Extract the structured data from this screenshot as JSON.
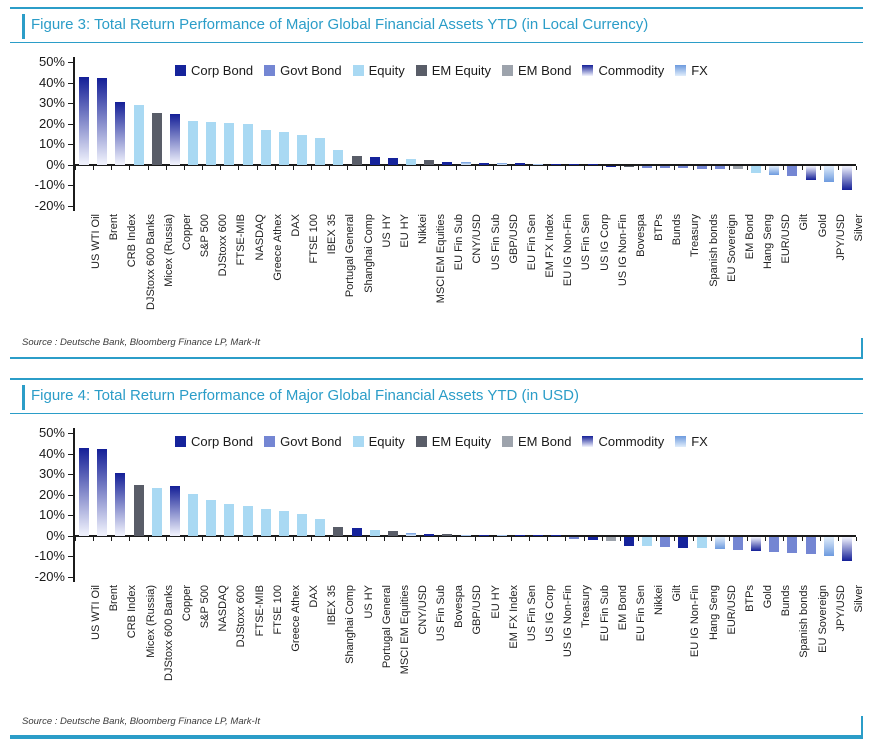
{
  "page": {
    "publisher_note": "Source : Deutsche Bank, Bloomberg Finance LP, Mark-It"
  },
  "colors": {
    "accent_teal": "#2b9dc8",
    "axis": "#1b1b1b"
  },
  "categories": {
    "corp_bond": {
      "label": "Corp Bond",
      "color": "#15239b"
    },
    "govt_bond": {
      "label": "Govt Bond",
      "color": "#7486d3"
    },
    "equity": {
      "label": "Equity",
      "color": "#a9d9f3"
    },
    "em_equity": {
      "label": "EM Equity",
      "color": "#595d68"
    },
    "em_bond": {
      "label": "EM Bond",
      "color": "#9da3ac"
    },
    "commodity": {
      "label": "Commodity",
      "gradient": [
        "#141f97",
        "#edeffb"
      ]
    },
    "fx": {
      "label": "FX",
      "gradient": [
        "#6d9ade",
        "#ddebfa"
      ]
    }
  },
  "legend": [
    {
      "label": "Corp Bond",
      "cat": "corp_bond"
    },
    {
      "label": "Govt Bond",
      "cat": "govt_bond"
    },
    {
      "label": "Equity",
      "cat": "equity"
    },
    {
      "label": "EM Equity",
      "cat": "em_equity"
    },
    {
      "label": "EM Bond",
      "cat": "em_bond"
    },
    {
      "label": "Commodity",
      "cat": "commodity"
    },
    {
      "label": "FX",
      "cat": "fx"
    }
  ],
  "chart_data": [
    {
      "type": "bar",
      "title": "Figure 3: Total Return Performance of Major Global Financial Assets YTD (in Local Currency)",
      "source": "Source : Deutsche Bank, Bloomberg Finance LP, Mark-It",
      "ylim": [
        -20,
        50
      ],
      "yticks": [
        "50%",
        "40%",
        "30%",
        "20%",
        "10%",
        "0%",
        "-10%",
        "-20%"
      ],
      "grid": false,
      "legend_position": "top",
      "bars": [
        {
          "label": "US WTI Oil",
          "value": 42.5,
          "cat": "commodity"
        },
        {
          "label": "Brent",
          "value": 42,
          "cat": "commodity"
        },
        {
          "label": "CRB Index",
          "value": 30.5,
          "cat": "commodity"
        },
        {
          "label": "DJStoxx 600 Banks",
          "value": 29,
          "cat": "equity"
        },
        {
          "label": "Micex (Russia)",
          "value": 25,
          "cat": "em_equity"
        },
        {
          "label": "Copper",
          "value": 24.5,
          "cat": "commodity"
        },
        {
          "label": "S&P 500",
          "value": 21.5,
          "cat": "equity"
        },
        {
          "label": "DJStoxx 600",
          "value": 21,
          "cat": "equity"
        },
        {
          "label": "FTSE-MIB",
          "value": 20.5,
          "cat": "equity"
        },
        {
          "label": "NASDAQ",
          "value": 20,
          "cat": "equity"
        },
        {
          "label": "Greece Athex",
          "value": 17,
          "cat": "equity"
        },
        {
          "label": "DAX",
          "value": 16,
          "cat": "equity"
        },
        {
          "label": "FTSE 100",
          "value": 14.5,
          "cat": "equity"
        },
        {
          "label": "IBEX 35",
          "value": 13,
          "cat": "equity"
        },
        {
          "label": "Portugal General",
          "value": 7,
          "cat": "equity"
        },
        {
          "label": "Shanghai Comp",
          "value": 4.2,
          "cat": "em_equity"
        },
        {
          "label": "US HY",
          "value": 4,
          "cat": "corp_bond"
        },
        {
          "label": "EU HY",
          "value": 3.5,
          "cat": "corp_bond"
        },
        {
          "label": "Nikkei",
          "value": 2.8,
          "cat": "equity"
        },
        {
          "label": "MSCI EM Equities",
          "value": 2.3,
          "cat": "em_equity"
        },
        {
          "label": "EU Fin Sub",
          "value": 1.6,
          "cat": "corp_bond"
        },
        {
          "label": "CNY/USD",
          "value": 1.2,
          "cat": "fx"
        },
        {
          "label": "US Fin Sub",
          "value": 1.1,
          "cat": "corp_bond"
        },
        {
          "label": "GBP/USD",
          "value": 0.9,
          "cat": "fx"
        },
        {
          "label": "EU Fin Sen",
          "value": 0.8,
          "cat": "corp_bond"
        },
        {
          "label": "EM FX Index",
          "value": 0.6,
          "cat": "fx"
        },
        {
          "label": "EU IG Non-Fin",
          "value": 0.5,
          "cat": "corp_bond"
        },
        {
          "label": "US Fin Sen",
          "value": 0.4,
          "cat": "corp_bond"
        },
        {
          "label": "US IG Corp",
          "value": 0.3,
          "cat": "corp_bond"
        },
        {
          "label": "US IG Non-Fin",
          "value": -0.2,
          "cat": "corp_bond"
        },
        {
          "label": "Bovespa",
          "value": -0.8,
          "cat": "em_equity"
        },
        {
          "label": "BTPs",
          "value": -1.0,
          "cat": "govt_bond"
        },
        {
          "label": "Bunds",
          "value": -1.1,
          "cat": "govt_bond"
        },
        {
          "label": "Treasury",
          "value": -1.2,
          "cat": "govt_bond"
        },
        {
          "label": "Spanish bonds",
          "value": -1.3,
          "cat": "govt_bond"
        },
        {
          "label": "EU Sovereign",
          "value": -1.5,
          "cat": "govt_bond"
        },
        {
          "label": "EM Bond",
          "value": -1.7,
          "cat": "em_bond"
        },
        {
          "label": "Hang Seng",
          "value": -3.4,
          "cat": "equity"
        },
        {
          "label": "EUR/USD",
          "value": -4.3,
          "cat": "fx"
        },
        {
          "label": "Gilt",
          "value": -5.0,
          "cat": "govt_bond"
        },
        {
          "label": "Gold",
          "value": -7.0,
          "cat": "commodity"
        },
        {
          "label": "JPY/USD",
          "value": -7.8,
          "cat": "fx"
        },
        {
          "label": "Silver",
          "value": -11.5,
          "cat": "commodity"
        }
      ]
    },
    {
      "type": "bar",
      "title": "Figure 4: Total Return Performance of Major Global Financial Assets YTD (in USD)",
      "source": "Source : Deutsche Bank, Bloomberg Finance LP, Mark-It",
      "ylim": [
        -20,
        50
      ],
      "yticks": [
        "50%",
        "40%",
        "30%",
        "20%",
        "10%",
        "0%",
        "-10%",
        "-20%"
      ],
      "grid": false,
      "legend_position": "top",
      "bars": [
        {
          "label": "US WTI Oil",
          "value": 42.5,
          "cat": "commodity"
        },
        {
          "label": "Brent",
          "value": 42,
          "cat": "commodity"
        },
        {
          "label": "CRB Index",
          "value": 30.5,
          "cat": "commodity"
        },
        {
          "label": "Micex (Russia)",
          "value": 24.5,
          "cat": "em_equity"
        },
        {
          "label": "DJStoxx 600 Banks",
          "value": 23.5,
          "cat": "equity"
        },
        {
          "label": "Copper",
          "value": 24,
          "cat": "commodity"
        },
        {
          "label": "S&P 500",
          "value": 20.5,
          "cat": "equity"
        },
        {
          "label": "NASDAQ",
          "value": 17.5,
          "cat": "equity"
        },
        {
          "label": "DJStoxx 600",
          "value": 15.5,
          "cat": "equity"
        },
        {
          "label": "FTSE-MIB",
          "value": 14.5,
          "cat": "equity"
        },
        {
          "label": "FTSE 100",
          "value": 13,
          "cat": "equity"
        },
        {
          "label": "Greece Athex",
          "value": 12,
          "cat": "equity"
        },
        {
          "label": "DAX",
          "value": 10.5,
          "cat": "equity"
        },
        {
          "label": "IBEX 35",
          "value": 8,
          "cat": "equity"
        },
        {
          "label": "Shanghai Comp",
          "value": 4.5,
          "cat": "em_equity"
        },
        {
          "label": "US HY",
          "value": 3.8,
          "cat": "corp_bond"
        },
        {
          "label": "Portugal General",
          "value": 3,
          "cat": "equity"
        },
        {
          "label": "MSCI EM Equities",
          "value": 2.4,
          "cat": "em_equity"
        },
        {
          "label": "CNY/USD",
          "value": 1.2,
          "cat": "fx"
        },
        {
          "label": "US Fin Sub",
          "value": 1.0,
          "cat": "corp_bond"
        },
        {
          "label": "Bovespa",
          "value": 0.7,
          "cat": "em_equity"
        },
        {
          "label": "GBP/USD",
          "value": 0.5,
          "cat": "fx"
        },
        {
          "label": "EU HY",
          "value": 0.4,
          "cat": "corp_bond"
        },
        {
          "label": "EM FX Index",
          "value": 0.4,
          "cat": "fx"
        },
        {
          "label": "US Fin Sen",
          "value": 0.3,
          "cat": "corp_bond"
        },
        {
          "label": "US IG Corp",
          "value": 0.3,
          "cat": "corp_bond"
        },
        {
          "label": "US IG Non-Fin",
          "value": 0.2,
          "cat": "corp_bond"
        },
        {
          "label": "Treasury",
          "value": -1.2,
          "cat": "govt_bond"
        },
        {
          "label": "EU Fin Sub",
          "value": -1.6,
          "cat": "corp_bond"
        },
        {
          "label": "EM Bond",
          "value": -2.0,
          "cat": "em_bond"
        },
        {
          "label": "EU Fin Sen",
          "value": -4.3,
          "cat": "corp_bond"
        },
        {
          "label": "Nikkei",
          "value": -4.6,
          "cat": "equity"
        },
        {
          "label": "Gilt",
          "value": -5.0,
          "cat": "govt_bond"
        },
        {
          "label": "EU IG Non-Fin",
          "value": -5.2,
          "cat": "corp_bond"
        },
        {
          "label": "Hang Seng",
          "value": -5.5,
          "cat": "equity"
        },
        {
          "label": "EUR/USD",
          "value": -5.9,
          "cat": "fx"
        },
        {
          "label": "BTPs",
          "value": -6.2,
          "cat": "govt_bond"
        },
        {
          "label": "Gold",
          "value": -7.0,
          "cat": "commodity"
        },
        {
          "label": "Bunds",
          "value": -7.3,
          "cat": "govt_bond"
        },
        {
          "label": "Spanish bonds",
          "value": -7.7,
          "cat": "govt_bond"
        },
        {
          "label": "EU Sovereign",
          "value": -8.2,
          "cat": "govt_bond"
        },
        {
          "label": "JPY/USD",
          "value": -9.5,
          "cat": "fx"
        },
        {
          "label": "Silver",
          "value": -11.5,
          "cat": "commodity"
        }
      ]
    }
  ]
}
